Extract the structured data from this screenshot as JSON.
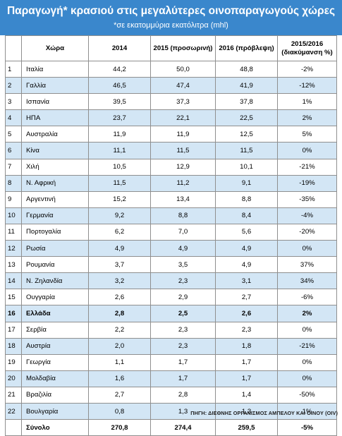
{
  "title": "Παραγωγή* κρασιού στις μεγαλύτερες οινοπαραγωγούς χώρες",
  "subtitle": "*σε εκατομμύρια εκατόλιτρα (mhl)",
  "columns": {
    "country": "Χώρα",
    "y2014": "2014",
    "y2015": "2015 (προσωρινή)",
    "y2016": "2016 (πρόβλεψη)",
    "change_line1": "2015/2016",
    "change_line2": "(διακύμανση %)"
  },
  "rows": [
    {
      "idx": "1",
      "country": "Ιταλία",
      "y2014": "44,2",
      "y2015": "50,0",
      "y2016": "48,8",
      "change": "-2%"
    },
    {
      "idx": "2",
      "country": "Γαλλία",
      "y2014": "46,5",
      "y2015": "47,4",
      "y2016": "41,9",
      "change": "-12%"
    },
    {
      "idx": "3",
      "country": "Ισπανία",
      "y2014": "39,5",
      "y2015": "37,3",
      "y2016": "37,8",
      "change": "1%"
    },
    {
      "idx": "4",
      "country": "ΗΠΑ",
      "y2014": "23,7",
      "y2015": "22,1",
      "y2016": "22,5",
      "change": "2%"
    },
    {
      "idx": "5",
      "country": "Αυστραλία",
      "y2014": "11,9",
      "y2015": "11,9",
      "y2016": "12,5",
      "change": "5%"
    },
    {
      "idx": "6",
      "country": "Κίνα",
      "y2014": "11,1",
      "y2015": "11,5",
      "y2016": "11,5",
      "change": "0%"
    },
    {
      "idx": "7",
      "country": "Χιλή",
      "y2014": "10,5",
      "y2015": "12,9",
      "y2016": "10,1",
      "change": "-21%"
    },
    {
      "idx": "8",
      "country": "Ν. Αφρική",
      "y2014": "11,5",
      "y2015": "11,2",
      "y2016": "9,1",
      "change": "-19%"
    },
    {
      "idx": "9",
      "country": "Αργεντινή",
      "y2014": "15,2",
      "y2015": "13,4",
      "y2016": "8,8",
      "change": "-35%"
    },
    {
      "idx": "10",
      "country": "Γερμανία",
      "y2014": "9,2",
      "y2015": "8,8",
      "y2016": "8,4",
      "change": "-4%"
    },
    {
      "idx": "11",
      "country": "Πορτογαλία",
      "y2014": "6,2",
      "y2015": "7,0",
      "y2016": "5,6",
      "change": "-20%"
    },
    {
      "idx": "12",
      "country": "Ρωσία",
      "y2014": "4,9",
      "y2015": "4,9",
      "y2016": "4,9",
      "change": "0%"
    },
    {
      "idx": "13",
      "country": "Ρουμανία",
      "y2014": "3,7",
      "y2015": "3,5",
      "y2016": "4,9",
      "change": "37%"
    },
    {
      "idx": "14",
      "country": "Ν. Ζηλανδία",
      "y2014": "3,2",
      "y2015": "2,3",
      "y2016": "3,1",
      "change": "34%"
    },
    {
      "idx": "15",
      "country": "Ουγγαρία",
      "y2014": "2,6",
      "y2015": "2,9",
      "y2016": "2,7",
      "change": "-6%"
    },
    {
      "idx": "16",
      "country": "Ελλάδα",
      "y2014": "2,8",
      "y2015": "2,5",
      "y2016": "2,6",
      "change": "2%",
      "bold": true
    },
    {
      "idx": "17",
      "country": "Σερβία",
      "y2014": "2,2",
      "y2015": "2,3",
      "y2016": "2,3",
      "change": "0%"
    },
    {
      "idx": "18",
      "country": "Αυστρία",
      "y2014": "2,0",
      "y2015": "2,3",
      "y2016": "1,8",
      "change": "-21%"
    },
    {
      "idx": "19",
      "country": "Γεωργία",
      "y2014": "1,1",
      "y2015": "1,7",
      "y2016": "1,7",
      "change": "0%"
    },
    {
      "idx": "20",
      "country": "Μολδαβία",
      "y2014": "1,6",
      "y2015": "1,7",
      "y2016": "1,7",
      "change": "0%"
    },
    {
      "idx": "21",
      "country": "Βραζιλία",
      "y2014": "2,7",
      "y2015": "2,8",
      "y2016": "1,4",
      "change": "-50%"
    },
    {
      "idx": "22",
      "country": "Βουλγαρία",
      "y2014": "0,8",
      "y2015": "1,3",
      "y2016": "1,3",
      "change": "1%"
    }
  ],
  "total": {
    "label": "Σύνολο",
    "y2014": "270,8",
    "y2015": "274,4",
    "y2016": "259,5",
    "change": "-5%"
  },
  "source": "ΠΗΓΗ: ΔΙΕΘΝΗΣ ΟΡΓΑΝΙΣΜΟΣ ΑΜΠΕΛΟΥ ΚΑΙ ΟΙΝΟΥ (OIV)",
  "colors": {
    "header_bg": "#3a87cc",
    "alt_row": "#d3e6f5",
    "border": "#8f8f8f"
  }
}
